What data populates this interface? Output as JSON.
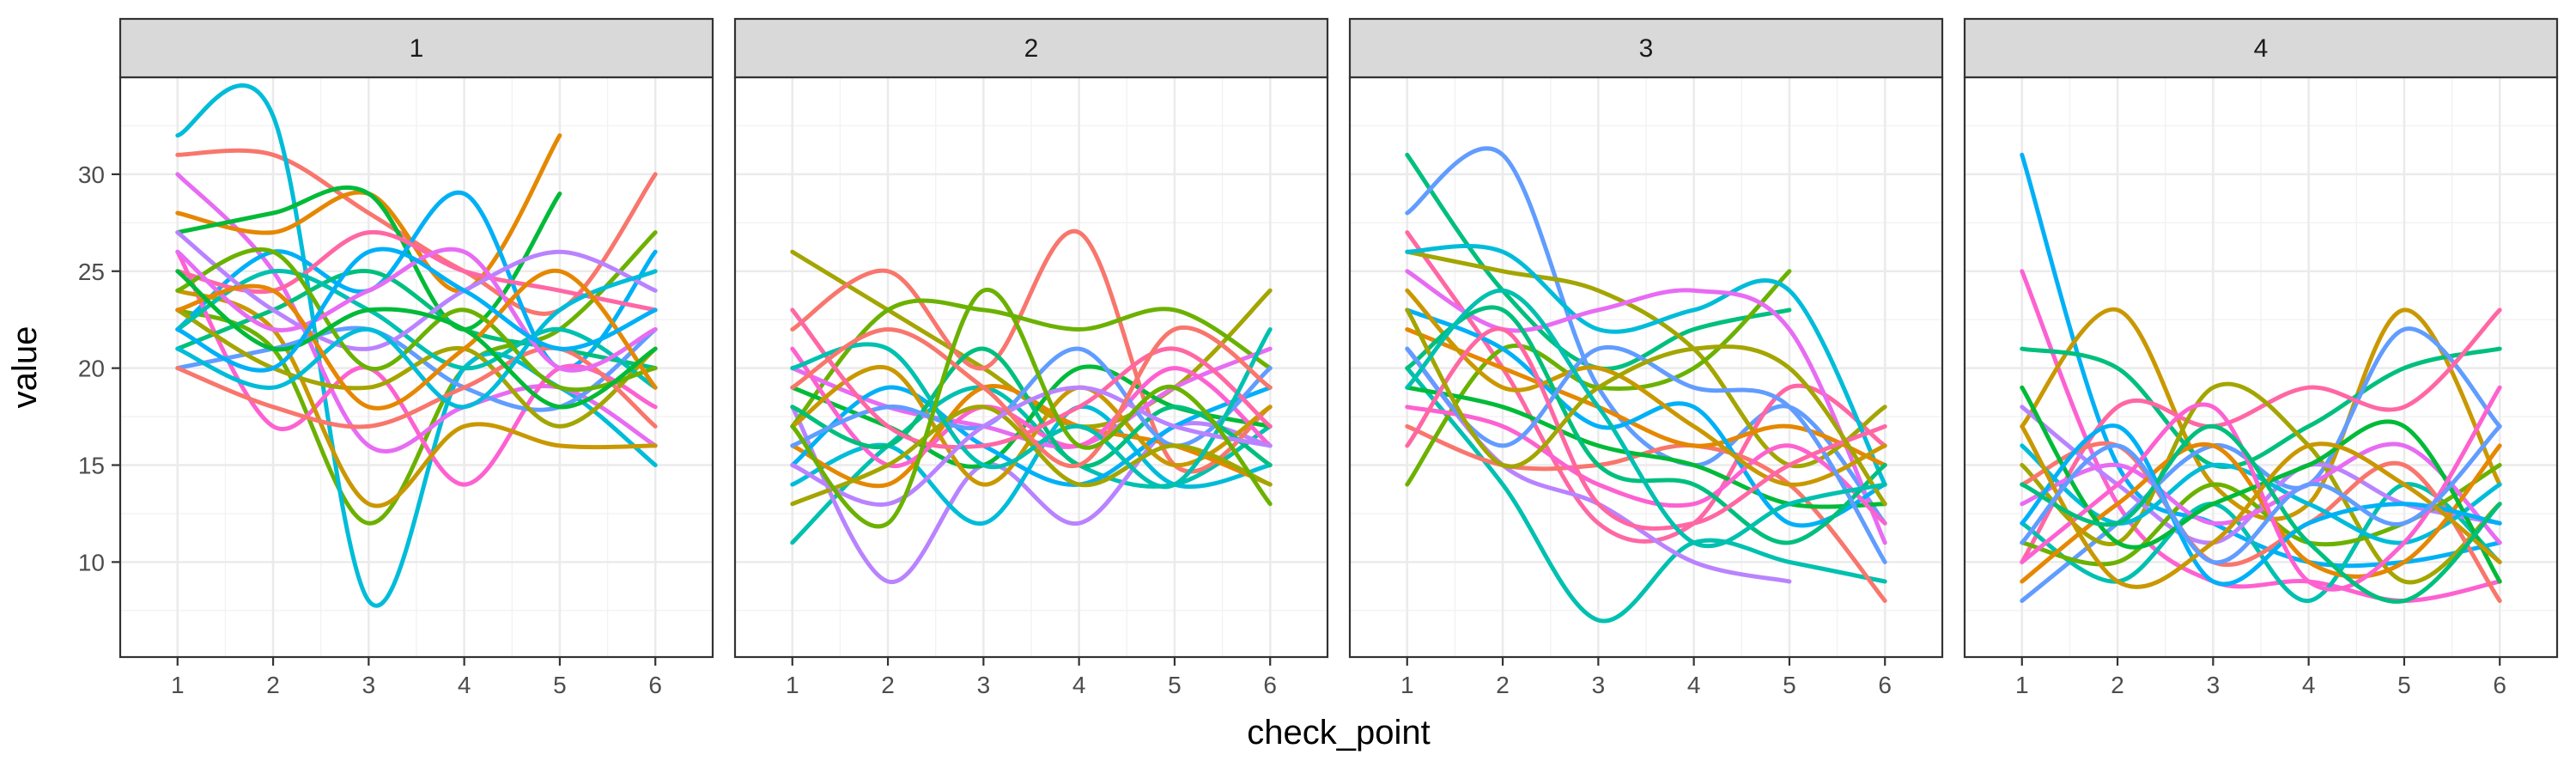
{
  "chart_data": {
    "type": "line",
    "facet_variable": "",
    "xlabel": "check_point",
    "ylabel": "value",
    "x_ticks": [
      1,
      2,
      3,
      4,
      5,
      6
    ],
    "y_ticks": [
      10,
      15,
      20,
      25,
      30
    ],
    "xlim": [
      0.4,
      6.6
    ],
    "ylim": [
      5.1,
      35.0
    ],
    "legend": "none",
    "grid": true,
    "palette": [
      "#F8766D",
      "#E58700",
      "#C99800",
      "#A3A500",
      "#6BB100",
      "#00BA38",
      "#00BF7D",
      "#00C0AF",
      "#00BCD8",
      "#00B0F6",
      "#619CFF",
      "#B983FF",
      "#E76BF3",
      "#FD61D1",
      "#FF67A4"
    ],
    "panels": [
      {
        "label": "1",
        "series": [
          {
            "values": [
              31.0,
              31.0,
              28.0,
              25.0,
              23.0,
              30.0
            ]
          },
          {
            "values": [
              23.0,
              21.0,
              12.0,
              20.0,
              22.0,
              27.0
            ]
          },
          {
            "values": [
              32.0,
              33.0,
              8.0,
              20.0,
              19.0,
              15.0
            ]
          },
          {
            "values": [
              30.0,
              25.0,
              16.0,
              18.0,
              19.0,
              16.0
            ]
          },
          {
            "values": [
              28.0,
              27.0,
              29.0,
              24.0,
              32.0,
              null
            ]
          },
          {
            "values": [
              27.0,
              28.0,
              29.0,
              22.0,
              29.0,
              null
            ]
          },
          {
            "values": [
              22.0,
              26.0,
              24.0,
              29.0,
              20.0,
              26.0
            ]
          },
          {
            "values": [
              26.0,
              17.0,
              20.0,
              14.0,
              20.0,
              18.0
            ]
          },
          {
            "values": [
              24.0,
              22.0,
              13.0,
              17.0,
              16.0,
              16.0
            ]
          },
          {
            "values": [
              21.0,
              23.0,
              25.0,
              22.0,
              21.0,
              20.0
            ]
          },
          {
            "values": [
              20.0,
              21.0,
              22.0,
              19.0,
              18.0,
              22.0
            ]
          },
          {
            "values": [
              25.0,
              24.0,
              27.0,
              25.0,
              24.0,
              23.0
            ]
          },
          {
            "values": [
              23.0,
              20.0,
              19.0,
              21.0,
              17.0,
              21.0
            ]
          },
          {
            "values": [
              22.0,
              25.0,
              23.0,
              20.0,
              22.0,
              19.0
            ]
          },
          {
            "values": [
              27.0,
              23.0,
              21.0,
              24.0,
              26.0,
              24.0
            ]
          },
          {
            "values": [
              20.0,
              18.0,
              17.0,
              19.0,
              21.0,
              17.0
            ]
          },
          {
            "values": [
              24.0,
              26.0,
              20.0,
              23.0,
              19.0,
              20.0
            ]
          },
          {
            "values": [
              21.0,
              19.0,
              22.0,
              18.0,
              23.0,
              25.0
            ]
          },
          {
            "values": [
              26.0,
              22.0,
              24.0,
              26.0,
              20.0,
              22.0
            ]
          },
          {
            "values": [
              23.0,
              24.0,
              18.0,
              21.0,
              25.0,
              19.0
            ]
          },
          {
            "values": [
              25.0,
              21.0,
              23.0,
              22.0,
              18.0,
              21.0
            ]
          },
          {
            "values": [
              22.0,
              20.0,
              26.0,
              24.0,
              21.0,
              23.0
            ]
          }
        ]
      },
      {
        "label": "2",
        "series": [
          {
            "values": [
              26.0,
              23.0,
              20.0,
              17.0,
              19.0,
              24.0
            ]
          },
          {
            "values": [
              11.0,
              16.0,
              19.0,
              15.0,
              14.0,
              17.0
            ]
          },
          {
            "values": [
              18.0,
              9.0,
              15.0,
              12.0,
              17.0,
              16.0
            ]
          },
          {
            "values": [
              22.0,
              25.0,
              20.0,
              27.0,
              15.0,
              18.0
            ]
          },
          {
            "values": [
              17.0,
              23.0,
              23.0,
              22.0,
              23.0,
              20.0
            ]
          },
          {
            "values": [
              14.0,
              16.0,
              12.0,
              18.0,
              14.0,
              15.0
            ]
          },
          {
            "values": [
              20.0,
              18.0,
              17.0,
              16.0,
              19.0,
              21.0
            ]
          },
          {
            "values": [
              16.0,
              14.0,
              19.0,
              17.0,
              16.0,
              14.0
            ]
          },
          {
            "values": [
              19.0,
              17.0,
              15.0,
              20.0,
              18.0,
              17.0
            ]
          },
          {
            "values": [
              15.0,
              19.0,
              16.0,
              14.0,
              17.0,
              19.0
            ]
          },
          {
            "values": [
              21.0,
              15.0,
              18.0,
              16.0,
              20.0,
              16.0
            ]
          },
          {
            "values": [
              17.0,
              20.0,
              14.0,
              19.0,
              15.0,
              18.0
            ]
          },
          {
            "values": [
              18.0,
              16.0,
              21.0,
              15.0,
              18.0,
              15.0
            ]
          },
          {
            "values": [
              16.0,
              18.0,
              17.0,
              21.0,
              16.0,
              20.0
            ]
          },
          {
            "values": [
              23.0,
              17.0,
              16.0,
              18.0,
              21.0,
              17.0
            ]
          },
          {
            "values": [
              13.0,
              15.0,
              18.0,
              14.0,
              16.0,
              14.0
            ]
          },
          {
            "values": [
              20.0,
              21.0,
              15.0,
              17.0,
              14.0,
              22.0
            ]
          },
          {
            "values": [
              15.0,
              13.0,
              17.0,
              19.0,
              17.0,
              16.0
            ]
          },
          {
            "values": [
              19.0,
              22.0,
              19.0,
              15.0,
              22.0,
              19.0
            ]
          },
          {
            "values": [
              17.0,
              12.0,
              24.0,
              16.0,
              19.0,
              13.0
            ]
          }
        ]
      },
      {
        "label": "3",
        "series": [
          {
            "values": [
              31.0,
              24.0,
              20.0,
              22.0,
              23.0,
              null
            ]
          },
          {
            "values": [
              28.0,
              31.0,
              19.0,
              15.0,
              18.0,
              12.0
            ]
          },
          {
            "values": [
              27.0,
              20.0,
              12.0,
              12.0,
              19.0,
              16.0
            ]
          },
          {
            "values": [
              26.0,
              25.0,
              24.0,
              21.0,
              15.0,
              18.0
            ]
          },
          {
            "values": [
              20.0,
              14.0,
              7.0,
              11.0,
              10.0,
              9.0
            ]
          },
          {
            "values": [
              21.0,
              15.0,
              13.0,
              10.0,
              9.0,
              null
            ]
          },
          {
            "values": [
              17.0,
              15.0,
              15.0,
              16.0,
              14.0,
              8.0
            ]
          },
          {
            "values": [
              14.0,
              21.0,
              19.0,
              20.0,
              25.0,
              null
            ]
          },
          {
            "values": [
              26.0,
              26.0,
              22.0,
              23.0,
              24.0,
              14.0
            ]
          },
          {
            "values": [
              25.0,
              22.0,
              23.0,
              24.0,
              22.0,
              11.0
            ]
          },
          {
            "values": [
              22.0,
              20.0,
              18.0,
              16.0,
              17.0,
              15.0
            ]
          },
          {
            "values": [
              19.0,
              18.0,
              16.0,
              15.0,
              13.0,
              13.0
            ]
          },
          {
            "values": [
              23.0,
              21.0,
              17.0,
              18.0,
              12.0,
              14.0
            ]
          },
          {
            "values": [
              18.0,
              17.0,
              14.0,
              13.0,
              16.0,
              12.0
            ]
          },
          {
            "values": [
              24.0,
              19.0,
              20.0,
              17.0,
              14.0,
              16.0
            ]
          },
          {
            "values": [
              20.0,
              23.0,
              15.0,
              14.0,
              11.0,
              15.0
            ]
          },
          {
            "values": [
              21.0,
              16.0,
              21.0,
              19.0,
              18.0,
              10.0
            ]
          },
          {
            "values": [
              16.0,
              22.0,
              13.0,
              12.0,
              15.0,
              17.0
            ]
          },
          {
            "values": [
              23.0,
              15.0,
              19.0,
              21.0,
              20.0,
              13.0
            ]
          },
          {
            "values": [
              19.0,
              24.0,
              18.0,
              11.0,
              13.0,
              14.0
            ]
          }
        ]
      },
      {
        "label": "4",
        "series": [
          {
            "values": [
              31.0,
              15.0,
              12.0,
              10.0,
              10.0,
              11.0
            ]
          },
          {
            "values": [
              25.0,
              13.0,
              9.0,
              9.0,
              8.0,
              9.0
            ]
          },
          {
            "values": [
              17.0,
              23.0,
              14.0,
              13.0,
              23.0,
              14.0
            ]
          },
          {
            "values": [
              21.0,
              20.0,
              15.0,
              17.0,
              20.0,
              21.0
            ]
          },
          {
            "values": [
              8.0,
              12.0,
              16.0,
              14.0,
              22.0,
              17.0
            ]
          },
          {
            "values": [
              10.0,
              18.0,
              17.0,
              19.0,
              18.0,
              23.0
            ]
          },
          {
            "values": [
              15.0,
              11.0,
              19.0,
              16.0,
              9.0,
              13.0
            ]
          },
          {
            "values": [
              12.0,
              9.0,
              13.0,
              8.0,
              14.0,
              10.0
            ]
          },
          {
            "values": [
              18.0,
              14.0,
              11.0,
              15.0,
              13.0,
              12.0
            ]
          },
          {
            "values": [
              14.0,
              16.0,
              10.0,
              12.0,
              15.0,
              8.0
            ]
          },
          {
            "values": [
              11.0,
              10.0,
              14.0,
              11.0,
              12.0,
              15.0
            ]
          },
          {
            "values": [
              16.0,
              12.0,
              15.0,
              13.0,
              11.0,
              14.0
            ]
          },
          {
            "values": [
              13.0,
              15.0,
              12.0,
              14.0,
              16.0,
              11.0
            ]
          },
          {
            "values": [
              9.0,
              13.0,
              16.0,
              10.0,
              10.0,
              16.0
            ]
          },
          {
            "values": [
              19.0,
              11.0,
              13.0,
              15.0,
              17.0,
              9.0
            ]
          },
          {
            "values": [
              12.0,
              17.0,
              9.0,
              12.0,
              13.0,
              12.0
            ]
          },
          {
            "values": [
              10.0,
              14.0,
              18.0,
              9.0,
              11.0,
              19.0
            ]
          },
          {
            "values": [
              17.0,
              9.0,
              11.0,
              16.0,
              14.0,
              10.0
            ]
          },
          {
            "values": [
              14.0,
              12.0,
              17.0,
              11.0,
              8.0,
              13.0
            ]
          },
          {
            "values": [
              11.0,
              16.0,
              10.0,
              14.0,
              12.0,
              17.0
            ]
          }
        ]
      }
    ]
  }
}
